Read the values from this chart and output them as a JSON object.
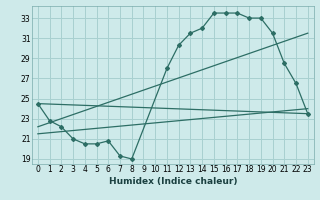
{
  "xlabel": "Humidex (Indice chaleur)",
  "bg_color": "#ceeaea",
  "grid_color": "#a8d0d0",
  "line_color": "#2d6e65",
  "xlim": [
    -0.5,
    23.5
  ],
  "ylim": [
    18.5,
    34.2
  ],
  "yticks": [
    19,
    21,
    23,
    25,
    27,
    29,
    31,
    33
  ],
  "xticks": [
    0,
    1,
    2,
    3,
    4,
    5,
    6,
    7,
    8,
    9,
    10,
    11,
    12,
    13,
    14,
    15,
    16,
    17,
    18,
    19,
    20,
    21,
    22,
    23
  ],
  "tick_labels_x": [
    "0",
    "1",
    "2",
    "3",
    "4",
    "5",
    "6",
    "7",
    "8",
    "9",
    "10",
    "11",
    "12",
    "13",
    "14",
    "15",
    "16",
    "17",
    "18",
    "19",
    "20",
    "21",
    "22",
    "23"
  ],
  "jagged_x": [
    0,
    1,
    2,
    3,
    4,
    5,
    6,
    7,
    8,
    11,
    12,
    13,
    14,
    15,
    16,
    17,
    18,
    19,
    20,
    21,
    22,
    23
  ],
  "jagged_y": [
    24.5,
    22.8,
    22.2,
    21.0,
    20.5,
    20.5,
    20.8,
    19.3,
    19.0,
    28.0,
    30.3,
    31.5,
    32.0,
    33.5,
    33.5,
    33.5,
    33.0,
    33.0,
    31.5,
    28.5,
    26.5,
    23.5
  ],
  "line1_x": [
    0,
    23
  ],
  "line1_y": [
    24.5,
    23.5
  ],
  "line2_x": [
    0,
    23
  ],
  "line2_y": [
    22.2,
    31.5
  ],
  "line3_x": [
    0,
    23
  ],
  "line3_y": [
    21.5,
    24.0
  ]
}
